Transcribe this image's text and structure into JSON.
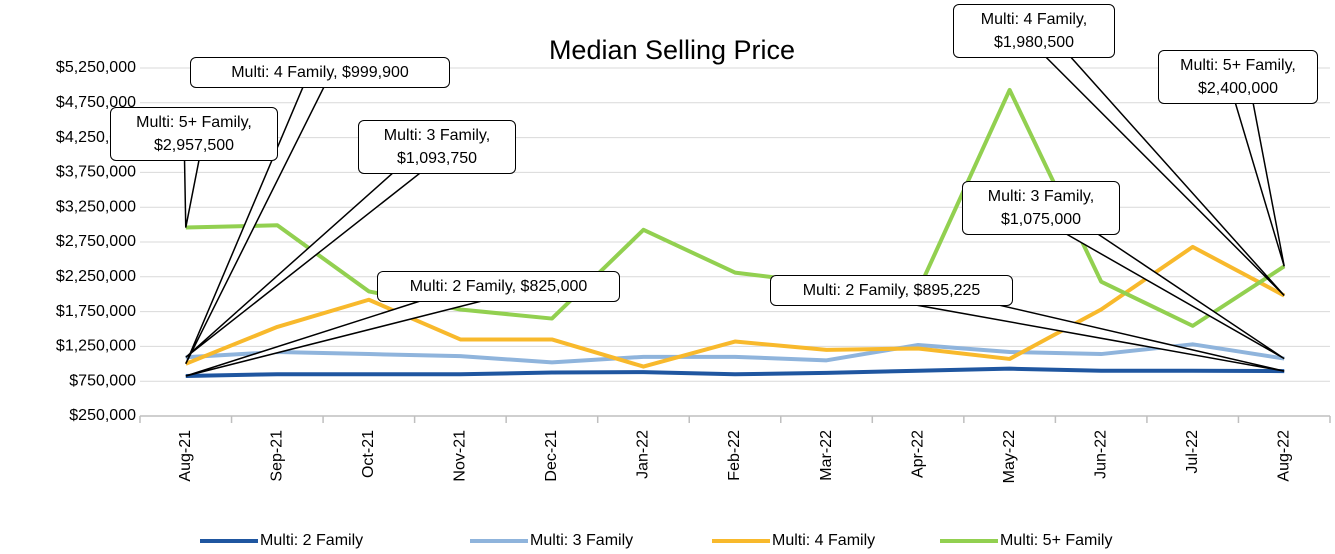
{
  "chart_data": {
    "type": "line",
    "title": "Median Selling Price",
    "categories": [
      "Aug-21",
      "Sep-21",
      "Oct-21",
      "Nov-21",
      "Dec-21",
      "Jan-22",
      "Feb-22",
      "Mar-22",
      "Apr-22",
      "May-22",
      "Jun-22",
      "Jul-22",
      "Aug-22"
    ],
    "ylim": [
      250000,
      5250000
    ],
    "yticks": [
      {
        "value": 250000,
        "label": "$250,000"
      },
      {
        "value": 750000,
        "label": "$750,000"
      },
      {
        "value": 1250000,
        "label": "$1,250,000"
      },
      {
        "value": 1750000,
        "label": "$1,750,000"
      },
      {
        "value": 2250000,
        "label": "$2,250,000"
      },
      {
        "value": 2750000,
        "label": "$2,750,000"
      },
      {
        "value": 3250000,
        "label": "$3,250,000"
      },
      {
        "value": 3750000,
        "label": "$3,750,000"
      },
      {
        "value": 4250000,
        "label": "$4,250,000"
      },
      {
        "value": 4750000,
        "label": "$4,750,000"
      },
      {
        "value": 5250000,
        "label": "$5,250,000"
      }
    ],
    "grid": true,
    "legend": "bottom",
    "series": [
      {
        "name": "Multi: 2 Family",
        "color": "#1f56a0",
        "values": [
          825000,
          850000,
          850000,
          850000,
          875000,
          880000,
          850000,
          870000,
          900000,
          930000,
          900000,
          900000,
          895225
        ],
        "value_labels": [
          "Multi: 2 Family, $825,000",
          null,
          null,
          null,
          null,
          null,
          null,
          null,
          null,
          null,
          null,
          null,
          "Multi: 2 Family, $895,225"
        ]
      },
      {
        "name": "Multi: 3 Family",
        "color": "#8fb4dc",
        "values": [
          1093750,
          1170000,
          1140000,
          1110000,
          1020000,
          1100000,
          1100000,
          1050000,
          1270000,
          1170000,
          1140000,
          1280000,
          1075000
        ],
        "value_labels": [
          "Multi: 3 Family, $1,093,750",
          null,
          null,
          null,
          null,
          null,
          null,
          null,
          null,
          null,
          null,
          null,
          "Multi: 3 Family, $1,075,000"
        ]
      },
      {
        "name": "Multi: 4 Family",
        "color": "#f8b92c",
        "values": [
          999900,
          1530000,
          1920000,
          1350000,
          1350000,
          960000,
          1320000,
          1200000,
          1220000,
          1070000,
          1780000,
          2680000,
          1980500
        ],
        "value_labels": [
          "Multi: 4 Family, $999,900",
          null,
          null,
          null,
          null,
          null,
          null,
          null,
          null,
          null,
          null,
          null,
          "Multi: 4 Family, $1,980,500"
        ]
      },
      {
        "name": "Multi: 5+ Family",
        "color": "#92d050",
        "values": [
          2957500,
          2990000,
          2040000,
          1780000,
          1650000,
          2925000,
          2310000,
          2150000,
          2050000,
          4935000,
          2180000,
          1545000,
          2400000
        ],
        "value_labels": [
          "Multi: 5+ Family, $2,957,500",
          null,
          null,
          null,
          null,
          null,
          null,
          null,
          null,
          null,
          null,
          null,
          "Multi: 5+ Family, $2,400,000"
        ]
      }
    ]
  }
}
